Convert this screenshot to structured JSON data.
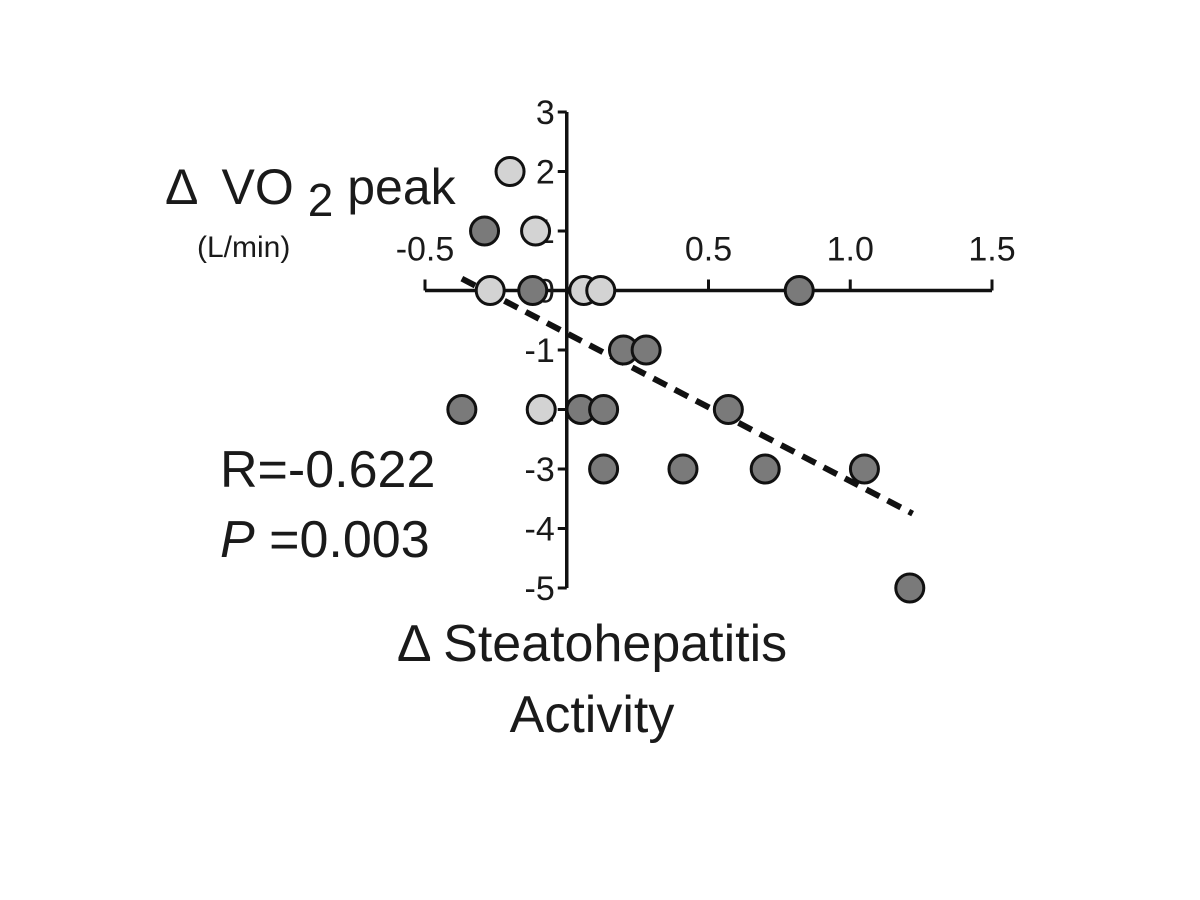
{
  "chart_data": {
    "type": "scatter",
    "title": "",
    "y_axis": {
      "label_delta": "Δ",
      "label_base": "VO",
      "label_subscript": "2",
      "label_suffix": "peak",
      "unit": "(L/min)",
      "range": [
        -5,
        3
      ],
      "ticks": [
        -5,
        -4,
        -3,
        -2,
        -1,
        0,
        1,
        2,
        3
      ],
      "tick_labels": [
        "-5",
        "-4",
        "-3",
        "-2",
        "-1",
        "0",
        "1",
        "2",
        "3"
      ]
    },
    "x_axis": {
      "label_line1": "Δ Steatohepatitis",
      "label_line2": "Activity",
      "range": [
        -0.5,
        1.5
      ],
      "ticks": [
        -0.5,
        0,
        0.5,
        1.0,
        1.5
      ],
      "tick_labels": [
        "-0.5",
        "",
        "0.5",
        "1.0",
        "1.5"
      ]
    },
    "grid": false,
    "annotations": {
      "r_text": "R=-0.622",
      "p_italic": "P",
      "p_value": "=0.003"
    },
    "trendline": {
      "style": "dashed",
      "x": [
        -0.37,
        1.22
      ],
      "y": [
        0.2,
        -3.75
      ]
    },
    "series": [
      {
        "color": "#7a7a7a",
        "points": [
          {
            "x": -0.29,
            "y": 1
          },
          {
            "x": -0.12,
            "y": 0
          },
          {
            "x": 0.82,
            "y": 0
          },
          {
            "x": 0.2,
            "y": -1
          },
          {
            "x": 0.28,
            "y": -1
          },
          {
            "x": -0.37,
            "y": -2
          },
          {
            "x": 0.05,
            "y": -2
          },
          {
            "x": 0.13,
            "y": -2
          },
          {
            "x": 0.57,
            "y": -2
          },
          {
            "x": 0.13,
            "y": -3
          },
          {
            "x": 0.41,
            "y": -3
          },
          {
            "x": 0.7,
            "y": -3
          },
          {
            "x": 1.05,
            "y": -3
          },
          {
            "x": 1.21,
            "y": -5
          }
        ]
      },
      {
        "color": "#d3d3d3",
        "points": [
          {
            "x": -0.2,
            "y": 2
          },
          {
            "x": -0.11,
            "y": 1
          },
          {
            "x": -0.27,
            "y": 0
          },
          {
            "x": 0.06,
            "y": 0
          },
          {
            "x": 0.12,
            "y": 0
          },
          {
            "x": -0.09,
            "y": -2
          }
        ]
      }
    ]
  }
}
